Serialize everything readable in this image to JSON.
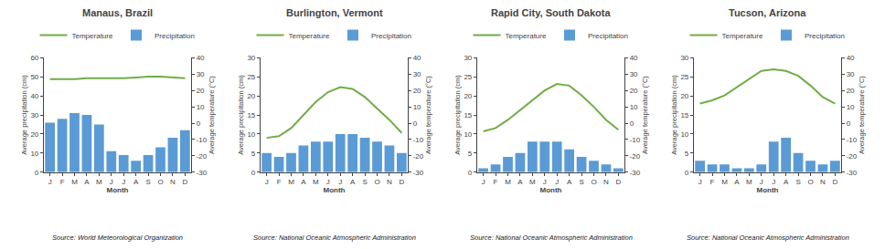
{
  "chart_data": [
    {
      "type": "bar",
      "title": "Manaus, Brazil",
      "annotations": [
        "Source: World Meteorological Organization"
      ],
      "xlabel": "Month",
      "ylabel": "Average precipitation (cm)",
      "y2label": "Average temperature (°C)",
      "categories": [
        "J",
        "F",
        "M",
        "A",
        "M",
        "J",
        "J",
        "A",
        "S",
        "O",
        "N",
        "D"
      ],
      "ylim": [
        0,
        60
      ],
      "yticks": [
        0,
        10,
        20,
        30,
        40,
        50,
        60
      ],
      "y2lim": [
        -30,
        40
      ],
      "y2ticks": [
        -30,
        -20,
        -10,
        0,
        10,
        20,
        30,
        40
      ],
      "grid": false,
      "legend": "top",
      "series": [
        {
          "name": "Precipitation",
          "type": "bar",
          "color": "#5B9BD5",
          "values": [
            26,
            28,
            31,
            30,
            25,
            11,
            9,
            6,
            9,
            13,
            18,
            22
          ]
        },
        {
          "name": "Temperature",
          "type": "line",
          "color": "#70AD47",
          "axis": "y2",
          "values": [
            27.0,
            27.0,
            27.0,
            27.5,
            27.5,
            27.5,
            27.5,
            28.0,
            28.5,
            28.5,
            28.0,
            27.5
          ]
        }
      ]
    },
    {
      "type": "bar",
      "title": "Burlington, Vermont",
      "annotations": [
        "Source: National Oceanic Atmospheric Administration"
      ],
      "xlabel": "Month",
      "ylabel": "Average precipitation (cm)",
      "y2label": "Average temperature (°C)",
      "categories": [
        "J",
        "F",
        "M",
        "A",
        "M",
        "J",
        "J",
        "A",
        "S",
        "O",
        "N",
        "D"
      ],
      "ylim": [
        0,
        30
      ],
      "yticks": [
        0,
        5,
        10,
        15,
        20,
        25,
        30
      ],
      "y2lim": [
        -30,
        40
      ],
      "y2ticks": [
        -30,
        -20,
        -10,
        0,
        10,
        20,
        30,
        40
      ],
      "grid": false,
      "legend": "top",
      "series": [
        {
          "name": "Precipitation",
          "type": "bar",
          "color": "#5B9BD5",
          "values": [
            5,
            4,
            5,
            7,
            8,
            8,
            10,
            10,
            9,
            8,
            7,
            5
          ]
        },
        {
          "name": "Temperature",
          "type": "line",
          "color": "#70AD47",
          "axis": "y2",
          "values": [
            -9,
            -8,
            -3,
            5,
            13,
            19,
            22,
            21,
            16,
            9,
            2,
            -6
          ]
        }
      ]
    },
    {
      "type": "bar",
      "title": "Rapid City, South Dakota",
      "annotations": [
        "Source: National Oceanic Atmospheric Administration"
      ],
      "xlabel": "Month",
      "ylabel": "Average precipitation (cm)",
      "y2label": "Average temperature (°C)",
      "categories": [
        "J",
        "F",
        "M",
        "A",
        "M",
        "J",
        "J",
        "A",
        "S",
        "O",
        "N",
        "D"
      ],
      "ylim": [
        0,
        30
      ],
      "yticks": [
        0,
        5,
        10,
        15,
        20,
        25,
        30
      ],
      "y2lim": [
        -30,
        40
      ],
      "y2ticks": [
        -30,
        -20,
        -10,
        0,
        10,
        20,
        30,
        40
      ],
      "grid": false,
      "legend": "top",
      "series": [
        {
          "name": "Precipitation",
          "type": "bar",
          "color": "#5B9BD5",
          "values": [
            1,
            2,
            4,
            5,
            8,
            8,
            8,
            6,
            4,
            3,
            2,
            1
          ]
        },
        {
          "name": "Temperature",
          "type": "line",
          "color": "#70AD47",
          "axis": "y2",
          "values": [
            -5,
            -3,
            2,
            8,
            14,
            20,
            24,
            23,
            17,
            10,
            2,
            -4
          ]
        }
      ]
    },
    {
      "type": "bar",
      "title": "Tucson, Arizona",
      "annotations": [
        "Source: National Oceanic Atmospheric Administration"
      ],
      "xlabel": "Month",
      "ylabel": "Average precipitation (cm)",
      "y2label": "Average temperature (°C)",
      "categories": [
        "J",
        "F",
        "M",
        "A",
        "M",
        "J",
        "J",
        "A",
        "S",
        "O",
        "N",
        "D"
      ],
      "ylim": [
        0,
        30
      ],
      "yticks": [
        0,
        5,
        10,
        15,
        20,
        25,
        30
      ],
      "y2lim": [
        -30,
        40
      ],
      "y2ticks": [
        -30,
        -20,
        -10,
        0,
        10,
        20,
        30,
        40
      ],
      "grid": false,
      "legend": "top",
      "series": [
        {
          "name": "Precipitation",
          "type": "bar",
          "color": "#5B9BD5",
          "values": [
            3,
            2,
            2,
            1,
            1,
            2,
            8,
            9,
            5,
            3,
            2,
            3
          ]
        },
        {
          "name": "Temperature",
          "type": "line",
          "color": "#70AD47",
          "axis": "y2",
          "values": [
            12,
            14,
            17,
            22,
            27,
            32,
            33,
            32,
            29,
            23,
            16,
            12
          ]
        }
      ]
    }
  ]
}
